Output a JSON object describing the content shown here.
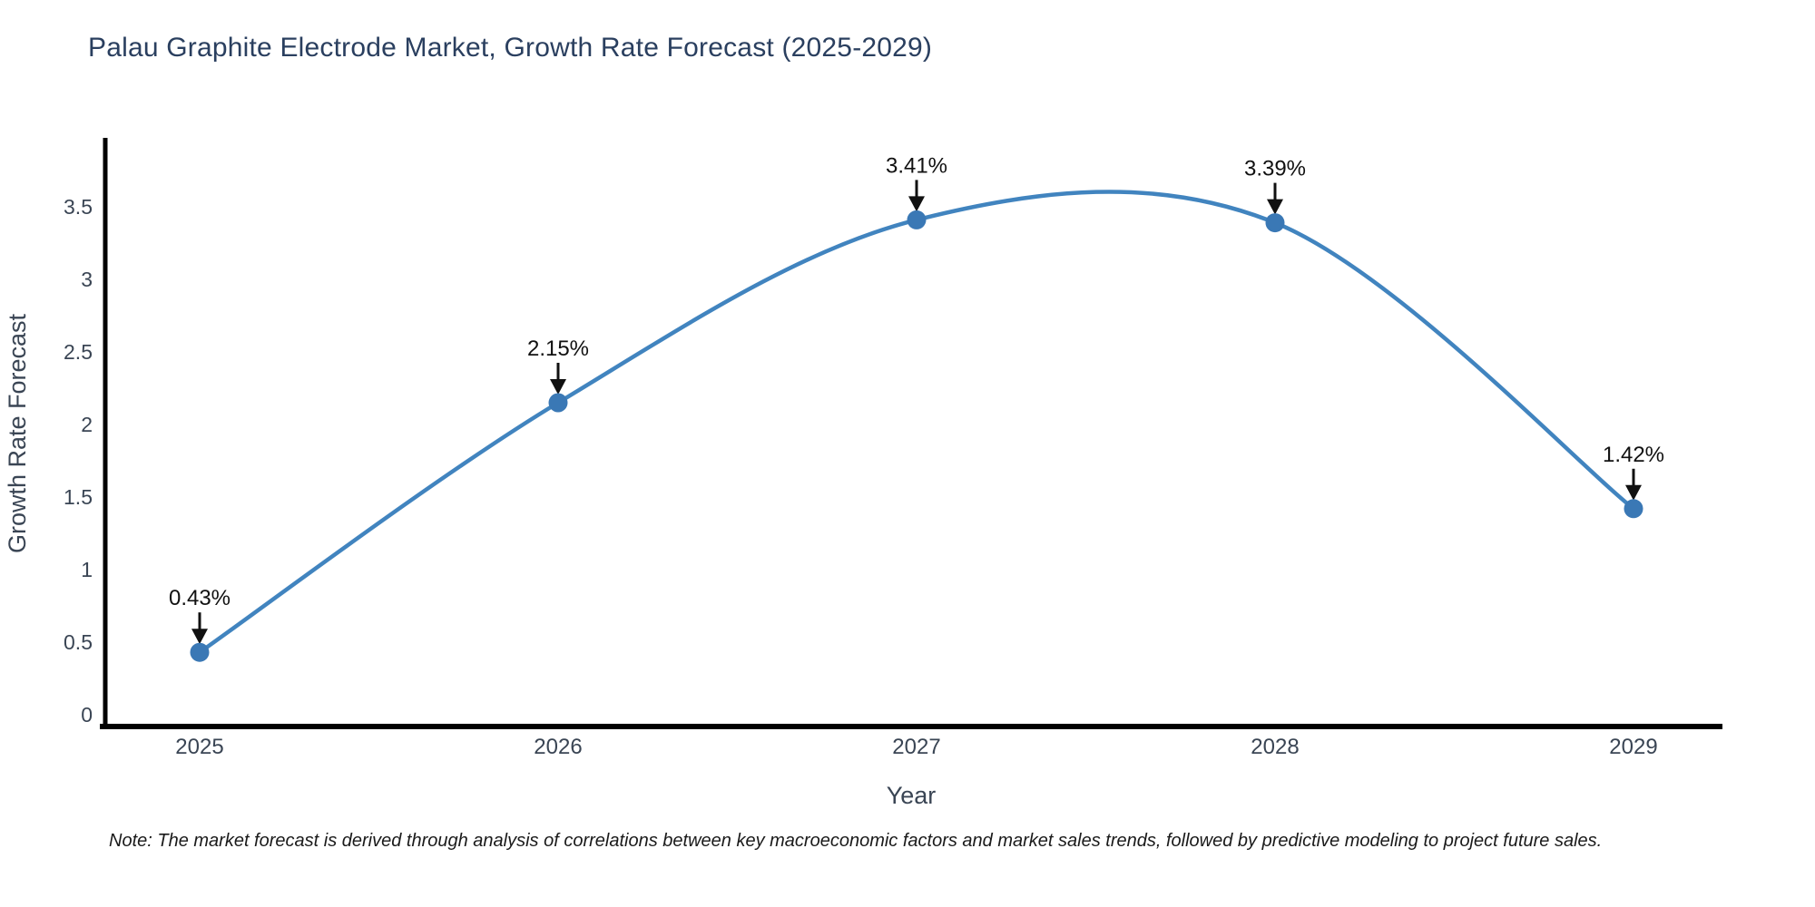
{
  "title": "Palau Graphite Electrode Market, Growth Rate Forecast (2025-2029)",
  "note": "Note: The market forecast is derived through analysis of correlations between key macroeconomic factors and market sales trends, followed by predictive modeling to project future sales.",
  "chart_data": {
    "type": "line",
    "title": "Palau Graphite Electrode Market, Growth Rate Forecast (2025-2029)",
    "categories": [
      "2025",
      "2026",
      "2027",
      "2028",
      "2029"
    ],
    "values": [
      0.43,
      2.15,
      3.41,
      3.39,
      1.42
    ],
    "point_labels": [
      "0.43%",
      "2.15%",
      "3.41%",
      "3.39%",
      "1.42%"
    ],
    "xlabel": "Year",
    "ylabel": "Growth Rate Forecast",
    "yticks": [
      "0",
      "0.5",
      "1",
      "1.5",
      "2",
      "2.5",
      "3",
      "3.5"
    ],
    "ytick_values": [
      0,
      0.5,
      1,
      1.5,
      2,
      2.5,
      3,
      3.5
    ],
    "ylim": [
      0,
      4.0
    ],
    "grid": false,
    "legend": "none",
    "smooth": true,
    "line_color": "#4184bf",
    "marker_color": "#3a78b5",
    "annotation_color": "#111111",
    "axis_color": "#000000",
    "tick_color": "#3a4554",
    "axis_title_color": "#3a4554",
    "title_color": "#2a3f5f"
  }
}
